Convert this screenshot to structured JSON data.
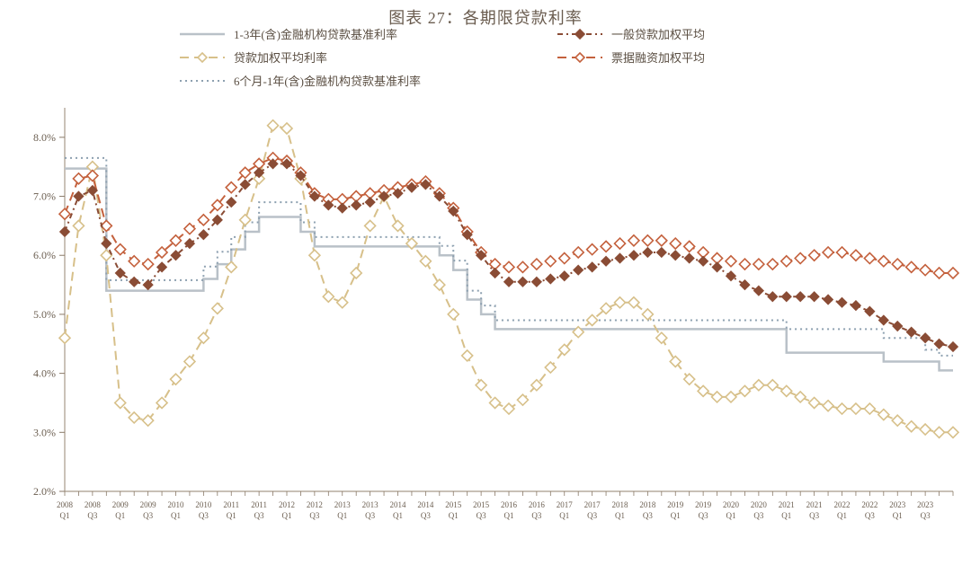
{
  "chart": {
    "type": "line",
    "title": "图表 27：各期限贷款利率",
    "background_color": "#ffffff",
    "plot_border_color": "#a89a8a",
    "plot_border_width": 1.2,
    "grid": false,
    "xlim": [
      0,
      64
    ],
    "ylim": [
      2.0,
      8.5
    ],
    "yticks": [
      2.0,
      3.0,
      4.0,
      5.0,
      6.0,
      7.0,
      8.0
    ],
    "ytick_labels": [
      "2.0%",
      "3.0%",
      "4.0%",
      "5.0%",
      "6.0%",
      "7.0%",
      "8.0%"
    ],
    "ytick_fontsize": 12,
    "axis_tick_color": "#8a7a68",
    "legend": {
      "position": "top-center",
      "fontsize": 13,
      "box": false,
      "items": [
        {
          "key": "s1",
          "label": "1-3年(含)金融机构贷款基准利率",
          "style": "solid",
          "color": "#b9c1c8",
          "marker": "none",
          "width": 2.5
        },
        {
          "key": "s2",
          "label": "一般贷款加权平均",
          "style": "dashed_dots",
          "color": "#8a4c35",
          "marker": "diamond",
          "width": 2
        },
        {
          "key": "s3",
          "label": "贷款加权平均利率",
          "style": "long_dash",
          "color": "#d7c08a",
          "marker": "diamond_open",
          "width": 2
        },
        {
          "key": "s4",
          "label": "票据融资加权平均",
          "style": "long_dash",
          "color": "#c4613d",
          "marker": "diamond_open",
          "width": 2
        },
        {
          "key": "s5",
          "label": "6个月-1年(含)金融机构贷款基准利率",
          "style": "dotted",
          "color": "#8da0b0",
          "marker": "none",
          "width": 2
        }
      ]
    },
    "x_axis": {
      "tick_count": 65,
      "label_color": "#6b5e50",
      "label_fontsize": 10,
      "labels_rotated": false,
      "labels": [
        "2008Q1",
        "",
        "2008Q3",
        "",
        "2009Q1",
        "",
        "2009Q3",
        "",
        "2010Q1",
        "",
        "2010Q3",
        "",
        "2011Q1",
        "",
        "2011Q3",
        "",
        "2012Q1",
        "",
        "2012Q3",
        "",
        "2013Q1",
        "",
        "2013Q3",
        "",
        "2014Q1",
        "",
        "2014Q3",
        "",
        "2015Q1",
        "",
        "2015Q3",
        "",
        "2016Q1",
        "",
        "2016Q3",
        "",
        "2017Q1",
        "",
        "2017Q3",
        "",
        "2018Q1",
        "",
        "2018Q3",
        "",
        "2019Q1",
        "",
        "2019Q3",
        "",
        "2020Q1",
        "",
        "2020Q3",
        "",
        "2021Q1",
        "",
        "2021Q3",
        "",
        "2022Q1",
        "",
        "2022Q3",
        "",
        "2023Q1",
        "",
        "2023Q3",
        ""
      ]
    },
    "series": {
      "s1": {
        "name": "1-3年(含)金融机构贷款基准利率",
        "color": "#b9c1c8",
        "width": 2.5,
        "style": "solid",
        "stepped": true,
        "marker": "none",
        "values": [
          7.47,
          7.47,
          7.47,
          5.4,
          5.4,
          5.4,
          5.4,
          5.4,
          5.4,
          5.4,
          5.6,
          5.85,
          6.1,
          6.4,
          6.65,
          6.65,
          6.65,
          6.4,
          6.15,
          6.15,
          6.15,
          6.15,
          6.15,
          6.15,
          6.15,
          6.15,
          6.15,
          6.0,
          5.75,
          5.25,
          5.0,
          4.75,
          4.75,
          4.75,
          4.75,
          4.75,
          4.75,
          4.75,
          4.75,
          4.75,
          4.75,
          4.75,
          4.75,
          4.75,
          4.75,
          4.75,
          4.75,
          4.75,
          4.75,
          4.75,
          4.75,
          4.75,
          4.35,
          4.35,
          4.35,
          4.35,
          4.35,
          4.35,
          4.35,
          4.2,
          4.2,
          4.2,
          4.2,
          4.05,
          4.05
        ]
      },
      "s5": {
        "name": "6个月-1年(含)金融机构贷款基准利率",
        "color": "#8da0b0",
        "width": 2,
        "style": "dotted",
        "stepped": true,
        "marker": "none",
        "values": [
          7.65,
          7.65,
          7.65,
          5.58,
          5.58,
          5.58,
          5.58,
          5.58,
          5.58,
          5.58,
          5.81,
          6.06,
          6.31,
          6.56,
          6.9,
          6.9,
          6.9,
          6.56,
          6.31,
          6.31,
          6.31,
          6.31,
          6.31,
          6.31,
          6.31,
          6.31,
          6.31,
          6.16,
          5.91,
          5.4,
          5.15,
          4.9,
          4.9,
          4.9,
          4.9,
          4.9,
          4.9,
          4.9,
          4.9,
          4.9,
          4.9,
          4.9,
          4.9,
          4.9,
          4.9,
          4.9,
          4.9,
          4.9,
          4.9,
          4.9,
          4.9,
          4.9,
          4.75,
          4.75,
          4.75,
          4.75,
          4.75,
          4.75,
          4.75,
          4.6,
          4.6,
          4.6,
          4.4,
          4.3,
          4.3
        ]
      },
      "s2": {
        "name": "一般贷款加权平均",
        "color": "#8a4c35",
        "width": 2,
        "style": "dashed_dots",
        "stepped": false,
        "marker": "diamond",
        "marker_size": 5,
        "values": [
          6.4,
          7.0,
          7.1,
          6.2,
          5.7,
          5.55,
          5.5,
          5.8,
          6.0,
          6.2,
          6.35,
          6.6,
          6.9,
          7.2,
          7.4,
          7.55,
          7.55,
          7.35,
          7.0,
          6.85,
          6.8,
          6.85,
          6.9,
          7.0,
          7.05,
          7.15,
          7.2,
          7.0,
          6.75,
          6.35,
          6.0,
          5.7,
          5.55,
          5.55,
          5.55,
          5.6,
          5.65,
          5.75,
          5.8,
          5.9,
          5.95,
          6.0,
          6.05,
          6.05,
          6.0,
          5.95,
          5.9,
          5.8,
          5.65,
          5.5,
          5.4,
          5.3,
          5.3,
          5.3,
          5.3,
          5.25,
          5.2,
          5.15,
          5.05,
          4.9,
          4.8,
          4.7,
          4.6,
          4.5,
          4.45
        ]
      },
      "s4": {
        "name": "票据融资加权平均",
        "color": "#c4613d",
        "width": 2,
        "style": "long_dash",
        "stepped": false,
        "marker": "diamond_open",
        "marker_size": 6,
        "values": [
          6.7,
          7.3,
          7.35,
          6.5,
          6.1,
          5.9,
          5.85,
          6.05,
          6.25,
          6.45,
          6.6,
          6.85,
          7.15,
          7.4,
          7.55,
          7.65,
          7.6,
          7.4,
          7.05,
          6.95,
          6.95,
          7.0,
          7.05,
          7.1,
          7.15,
          7.2,
          7.25,
          7.05,
          6.8,
          6.4,
          6.05,
          5.85,
          5.8,
          5.8,
          5.85,
          5.9,
          5.95,
          6.05,
          6.1,
          6.15,
          6.2,
          6.25,
          6.25,
          6.25,
          6.2,
          6.15,
          6.05,
          5.95,
          5.9,
          5.85,
          5.85,
          5.85,
          5.9,
          5.95,
          6.0,
          6.05,
          6.05,
          6.0,
          5.95,
          5.9,
          5.85,
          5.8,
          5.75,
          5.7,
          5.7
        ]
      },
      "s3": {
        "name": "贷款加权平均利率",
        "color": "#d7c08a",
        "width": 2,
        "style": "long_dash",
        "stepped": false,
        "marker": "diamond_open",
        "marker_size": 6,
        "values": [
          4.6,
          6.5,
          7.5,
          6.0,
          3.5,
          3.25,
          3.2,
          3.5,
          3.9,
          4.2,
          4.6,
          5.1,
          5.8,
          6.6,
          7.3,
          8.2,
          8.15,
          7.3,
          6.0,
          5.3,
          5.2,
          5.7,
          6.5,
          7.0,
          6.5,
          6.2,
          5.9,
          5.5,
          5.0,
          4.3,
          3.8,
          3.5,
          3.4,
          3.55,
          3.8,
          4.1,
          4.4,
          4.7,
          4.9,
          5.1,
          5.2,
          5.2,
          5.0,
          4.6,
          4.2,
          3.9,
          3.7,
          3.6,
          3.6,
          3.7,
          3.8,
          3.8,
          3.7,
          3.6,
          3.5,
          3.45,
          3.4,
          3.4,
          3.4,
          3.3,
          3.2,
          3.1,
          3.05,
          3.0,
          3.0
        ]
      }
    }
  }
}
